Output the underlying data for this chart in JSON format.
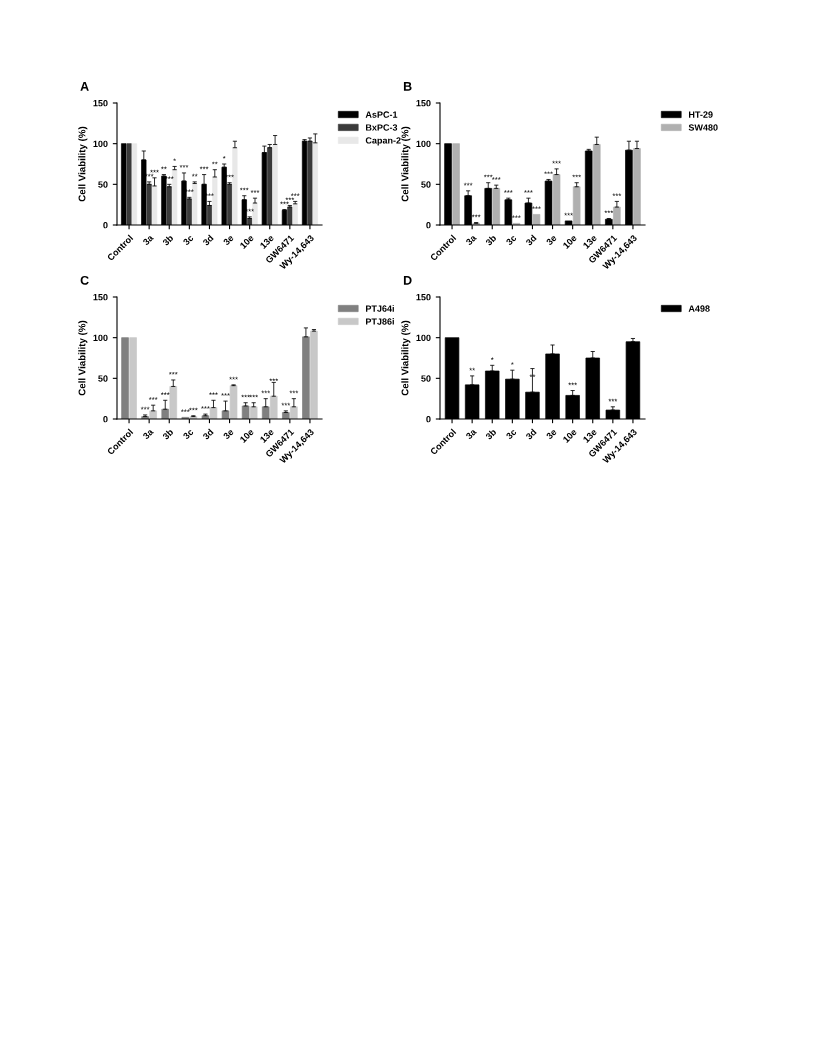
{
  "chart_data": [
    {
      "type": "bar",
      "title": "A",
      "ylabel": "Cell Viability (%)",
      "categories": [
        "Control",
        "3a",
        "3b",
        "3c",
        "3d",
        "3e",
        "10e",
        "13e",
        "GW6471",
        "Wy-14,643"
      ],
      "ylim": [
        0,
        150
      ],
      "yticks": [
        0,
        50,
        100,
        150
      ],
      "grid": false,
      "legend": "right",
      "series": [
        {
          "name": "AsPC-1",
          "color": "#000000",
          "values": [
            100,
            80,
            60,
            54,
            50,
            71,
            31,
            89,
            18,
            103
          ],
          "errors": [
            null,
            11,
            2,
            10,
            12,
            4,
            5,
            8,
            1,
            2
          ],
          "value_labels": [
            null,
            null,
            "**",
            "***",
            "***",
            "*",
            "***",
            null,
            "***",
            null
          ]
        },
        {
          "name": "BxPC-3",
          "color": "#3a3a3a",
          "values": [
            100,
            50,
            47,
            32,
            24,
            50,
            8,
            95,
            22,
            103
          ],
          "errors": [
            null,
            3,
            3,
            2,
            5,
            2,
            2,
            4,
            2,
            4
          ],
          "value_labels": [
            null,
            "***",
            "***",
            "***",
            "***",
            "***",
            "***",
            null,
            "***",
            null
          ]
        },
        {
          "name": "Capan-2",
          "color": "#e8e8e8",
          "values": [
            100,
            48,
            68,
            51,
            59,
            95,
            27,
            99,
            26,
            101
          ],
          "errors": [
            null,
            10,
            4,
            2,
            9,
            8,
            6,
            11,
            3,
            11
          ],
          "value_labels": [
            null,
            "***",
            "*",
            "**",
            "**",
            null,
            "***",
            null,
            "***",
            null
          ]
        }
      ]
    },
    {
      "type": "bar",
      "title": "B",
      "ylabel": "Cell Viability (%)",
      "categories": [
        "Control",
        "3a",
        "3b",
        "3c",
        "3d",
        "3e",
        "10e",
        "13e",
        "GW6471",
        "Wy-14,643"
      ],
      "ylim": [
        0,
        150
      ],
      "yticks": [
        0,
        50,
        100,
        150
      ],
      "grid": false,
      "legend": "right",
      "series": [
        {
          "name": "HT-29",
          "color": "#000000",
          "values": [
            100,
            36,
            45,
            31,
            27,
            54,
            5,
            91,
            7,
            92
          ],
          "errors": [
            null,
            6,
            7,
            2,
            6,
            2,
            null,
            2,
            1,
            11
          ],
          "value_labels": [
            null,
            "***",
            "***",
            "***",
            "***",
            "***",
            "***",
            null,
            "***",
            null
          ]
        },
        {
          "name": "SW480",
          "color": "#b0b0b0",
          "values": [
            100,
            2,
            45,
            2,
            13,
            62,
            47,
            99,
            22,
            94
          ],
          "errors": [
            null,
            1,
            4,
            null,
            null,
            7,
            5,
            9,
            7,
            9
          ],
          "value_labels": [
            null,
            "***",
            "***",
            "***",
            "***",
            "***",
            "***",
            null,
            "***",
            null
          ]
        }
      ]
    },
    {
      "type": "bar",
      "title": "C",
      "ylabel": "Cell Viability (%)",
      "categories": [
        "Control",
        "3a",
        "3b",
        "3c",
        "3d",
        "3e",
        "10e",
        "13e",
        "GW6471",
        "Wy-14,643"
      ],
      "ylim": [
        0,
        150
      ],
      "yticks": [
        0,
        50,
        100,
        150
      ],
      "grid": false,
      "legend": "right",
      "series": [
        {
          "name": "PTJ64i",
          "color": "#808080",
          "values": [
            100,
            3,
            12,
            2,
            4,
            10,
            16,
            15,
            8,
            101
          ],
          "errors": [
            null,
            2,
            11,
            null,
            2,
            12,
            4,
            10,
            2,
            11
          ],
          "value_labels": [
            null,
            "***",
            "***",
            "***",
            "***",
            "***",
            "***",
            "***",
            "***",
            null
          ]
        },
        {
          "name": "PTJ86i",
          "color": "#c8c8c8",
          "values": [
            100,
            10,
            40,
            3,
            14,
            41,
            15,
            28,
            15,
            108
          ],
          "errors": [
            null,
            7,
            8,
            1,
            9,
            1,
            5,
            17,
            10,
            2
          ],
          "value_labels": [
            null,
            "***",
            "***",
            "***",
            "***",
            "***",
            "***",
            "***",
            "***",
            null
          ]
        }
      ]
    },
    {
      "type": "bar",
      "title": "D",
      "ylabel": "Cell Viability (%)",
      "categories": [
        "Control",
        "3a",
        "3b",
        "3c",
        "3d",
        "3e",
        "10e",
        "13e",
        "GW6471",
        "Wy-14,643"
      ],
      "ylim": [
        0,
        150
      ],
      "yticks": [
        0,
        50,
        100,
        150
      ],
      "grid": false,
      "legend": "right",
      "series": [
        {
          "name": "A498",
          "color": "#000000",
          "values": [
            100,
            42,
            59,
            49,
            33,
            80,
            29,
            75,
            11,
            95
          ],
          "errors": [
            null,
            11,
            7,
            11,
            29,
            11,
            6,
            8,
            4,
            4
          ],
          "value_labels": [
            null,
            "**",
            "*",
            "*",
            "**",
            null,
            "***",
            null,
            "***",
            null
          ]
        }
      ]
    }
  ]
}
